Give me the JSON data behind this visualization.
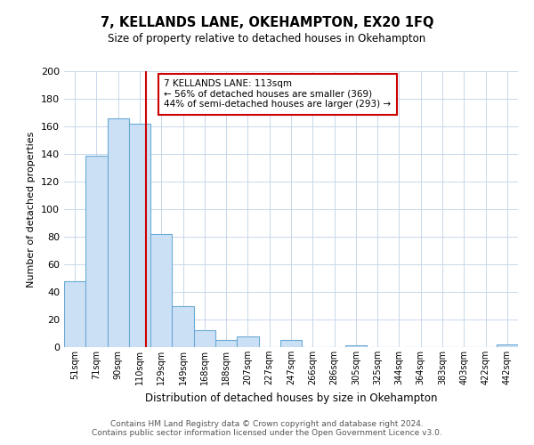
{
  "title": "7, KELLANDS LANE, OKEHAMPTON, EX20 1FQ",
  "subtitle": "Size of property relative to detached houses in Okehampton",
  "xlabel": "Distribution of detached houses by size in Okehampton",
  "ylabel": "Number of detached properties",
  "footer_lines": [
    "Contains HM Land Registry data © Crown copyright and database right 2024.",
    "Contains public sector information licensed under the Open Government Licence v3.0."
  ],
  "bar_labels": [
    "51sqm",
    "71sqm",
    "90sqm",
    "110sqm",
    "129sqm",
    "149sqm",
    "168sqm",
    "188sqm",
    "207sqm",
    "227sqm",
    "247sqm",
    "266sqm",
    "286sqm",
    "305sqm",
    "325sqm",
    "344sqm",
    "364sqm",
    "383sqm",
    "403sqm",
    "422sqm",
    "442sqm"
  ],
  "bar_values": [
    48,
    139,
    166,
    162,
    82,
    30,
    12,
    5,
    8,
    0,
    5,
    0,
    0,
    1,
    0,
    0,
    0,
    0,
    0,
    0,
    2
  ],
  "bar_color": "#cce0f5",
  "bar_edge_color": "#6aaad4",
  "vline_x": 3.0,
  "vline_color": "#cc0000",
  "annotation_title": "7 KELLANDS LANE: 113sqm",
  "annotation_line1": "← 56% of detached houses are smaller (369)",
  "annotation_line2": "44% of semi-detached houses are larger (293) →",
  "annotation_box_edge": "#cc0000",
  "ylim": [
    0,
    200
  ],
  "yticks": [
    0,
    20,
    40,
    60,
    80,
    100,
    120,
    140,
    160,
    180,
    200
  ],
  "background_color": "#ffffff",
  "grid_color": "#c8d8ea"
}
